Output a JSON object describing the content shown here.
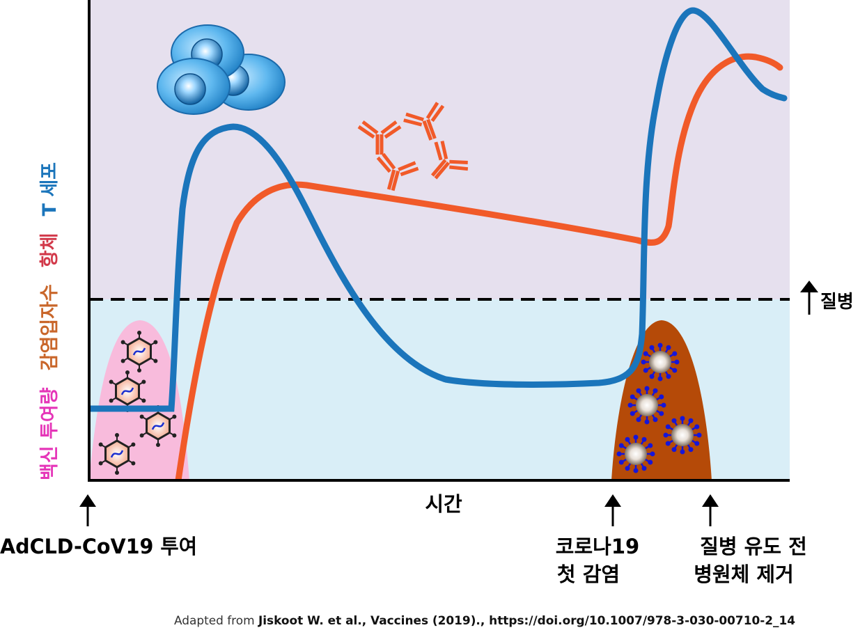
{
  "y_axis_labels": {
    "vaccine": "백신 투여량",
    "virus": "감염입자수",
    "antibody": "항체",
    "tcell": "T 세포"
  },
  "x_axis_label": "시간",
  "threshold_label": "질병",
  "events": {
    "dose": "AdCLD-CoV19 투여",
    "infection_line1": "코로나19",
    "infection_line2": "첫 감염",
    "clearance_line1": "질병 유도 전",
    "clearance_line2": "병원체 제거"
  },
  "citation": {
    "prefix": "Adapted from ",
    "authors": "Jiskoot W. et al., Vaccines (2019).",
    "sep": ", ",
    "link": "https://doi.org/10.1007/978-3-030-00710-2_14"
  },
  "colors": {
    "upper_bg": "#e6e0ee",
    "lower_bg": "#d9eef7",
    "tcell": "#1b75bb",
    "antibody": "#f15a29",
    "vaccine": "#f8bbdc",
    "virus": "#b54a08",
    "vaccine_label": "#e535b8",
    "virus_label": "#c9662a",
    "antibody_label": "#d2394a",
    "tcell_label": "#1b75bb"
  }
}
